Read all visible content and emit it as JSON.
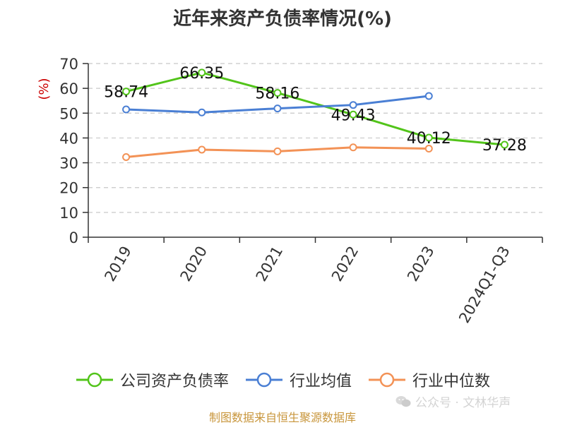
{
  "chart_data": {
    "type": "line",
    "title": "近年来资产负债率情况(%)",
    "ylabel": "(%)",
    "xlabel": "",
    "categories": [
      "2019",
      "2020",
      "2021",
      "2022",
      "2023",
      "2024Q1-Q3"
    ],
    "ylim": [
      0,
      70
    ],
    "yticks": [
      0,
      10,
      20,
      30,
      40,
      50,
      60,
      70
    ],
    "grid": true,
    "legend_position": "bottom",
    "series": [
      {
        "name": "公司资产负债率",
        "color": "#52c41a",
        "values": [
          58.74,
          66.35,
          58.16,
          49.43,
          40.12,
          37.28
        ],
        "labels": [
          "58.74",
          "66.35",
          "58.16",
          "49.43",
          "40.12",
          "37.28"
        ]
      },
      {
        "name": "行业均值",
        "color": "#4a7fd4",
        "values": [
          51.5,
          50.3,
          51.9,
          53.3,
          56.9,
          null
        ]
      },
      {
        "name": "行业中位数",
        "color": "#f39256",
        "values": [
          32.3,
          35.3,
          34.6,
          36.2,
          35.7,
          null
        ]
      }
    ]
  },
  "footer": {
    "source": "制图数据来自恒生聚源数据库",
    "watermark": "公众号 · 文林华声"
  },
  "colors": {
    "axis": "#333333",
    "grid": "#c8c8c8",
    "ylabel": "#cc0000",
    "source": "#c8963c"
  },
  "icons": {
    "watermark": "wechat-icon"
  }
}
